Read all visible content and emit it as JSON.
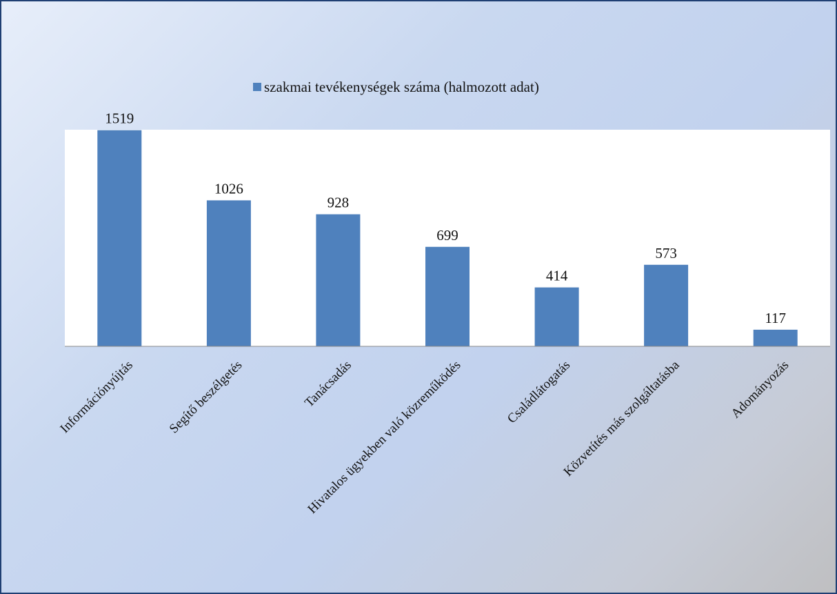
{
  "chart_data": {
    "type": "bar",
    "categories": [
      "Információnyújtás",
      "Segítő beszélgetés",
      "Tanácsadás",
      "Hivatalos ügyekben való közreműködés",
      "Családlátogatás",
      "Közvetítés más szolgáltatásba",
      "Adományozás"
    ],
    "series": [
      {
        "name": "szakmai tevékenységek száma (halmozott adat)",
        "values": [
          1519,
          1026,
          928,
          699,
          414,
          573,
          117
        ]
      }
    ],
    "value_labels": [
      "1519",
      "1026",
      "928",
      "699",
      "414",
      "573",
      "117"
    ],
    "ylim": [
      0,
      1600
    ],
    "grid": false,
    "legend_position": "top-center",
    "colors": {
      "bar": "#4f81bd",
      "frame_border": "#1f3f73",
      "plot_background": "#ffffff"
    }
  }
}
